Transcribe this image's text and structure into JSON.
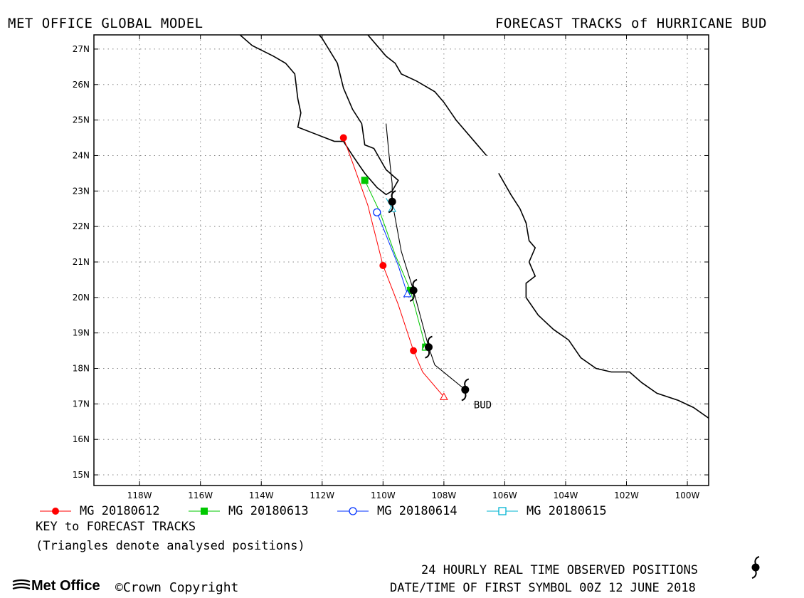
{
  "header": {
    "left": "MET OFFICE GLOBAL MODEL",
    "right": "FORECAST TRACKS of HURRICANE BUD"
  },
  "map": {
    "lon_range": [
      -119.5,
      -99.3
    ],
    "lat_range": [
      14.7,
      27.4
    ],
    "x_ticks": [
      {
        "lon": -118,
        "label": "118W"
      },
      {
        "lon": -116,
        "label": "116W"
      },
      {
        "lon": -114,
        "label": "114W"
      },
      {
        "lon": -112,
        "label": "112W"
      },
      {
        "lon": -110,
        "label": "110W"
      },
      {
        "lon": -108,
        "label": "108W"
      },
      {
        "lon": -106,
        "label": "106W"
      },
      {
        "lon": -104,
        "label": "104W"
      },
      {
        "lon": -102,
        "label": "102W"
      },
      {
        "lon": -100,
        "label": "100W"
      }
    ],
    "y_ticks": [
      {
        "lat": 15,
        "label": "15N"
      },
      {
        "lat": 16,
        "label": "16N"
      },
      {
        "lat": 17,
        "label": "17N"
      },
      {
        "lat": 18,
        "label": "18N"
      },
      {
        "lat": 19,
        "label": "19N"
      },
      {
        "lat": 20,
        "label": "20N"
      },
      {
        "lat": 21,
        "label": "21N"
      },
      {
        "lat": 22,
        "label": "22N"
      },
      {
        "lat": 23,
        "label": "23N"
      },
      {
        "lat": 24,
        "label": "24N"
      },
      {
        "lat": 25,
        "label": "25N"
      },
      {
        "lat": 26,
        "label": "26N"
      },
      {
        "lat": 27,
        "label": "27N"
      }
    ],
    "grid": true,
    "coastlines": [
      [
        [
          -114.7,
          27.4
        ],
        [
          -114.3,
          27.1
        ],
        [
          -113.6,
          26.8
        ],
        [
          -113.2,
          26.6
        ],
        [
          -112.9,
          26.3
        ],
        [
          -112.8,
          25.6
        ],
        [
          -112.7,
          25.2
        ],
        [
          -112.8,
          24.8
        ],
        [
          -112.2,
          24.6
        ],
        [
          -111.6,
          24.4
        ],
        [
          -111.3,
          24.4
        ],
        [
          -111.0,
          24.0
        ],
        [
          -110.6,
          23.5
        ],
        [
          -110.2,
          23.1
        ],
        [
          -109.9,
          22.9
        ],
        [
          -109.7,
          23.0
        ],
        [
          -109.5,
          23.3
        ],
        [
          -109.9,
          23.6
        ],
        [
          -110.3,
          24.2
        ],
        [
          -110.6,
          24.3
        ],
        [
          -110.7,
          24.9
        ],
        [
          -111.0,
          25.3
        ],
        [
          -111.3,
          25.9
        ],
        [
          -111.5,
          26.6
        ],
        [
          -112.0,
          27.3
        ],
        [
          -112.1,
          27.4
        ]
      ],
      [
        [
          -110.5,
          27.4
        ],
        [
          -110.2,
          27.1
        ],
        [
          -109.9,
          26.8
        ],
        [
          -109.6,
          26.6
        ],
        [
          -109.4,
          26.3
        ],
        [
          -108.9,
          26.1
        ],
        [
          -108.3,
          25.8
        ],
        [
          -108.0,
          25.5
        ],
        [
          -107.6,
          25.0
        ],
        [
          -107.1,
          24.5
        ],
        [
          -106.6,
          24.0
        ]
      ],
      [
        [
          -106.2,
          23.5
        ],
        [
          -105.8,
          22.9
        ],
        [
          -105.5,
          22.5
        ],
        [
          -105.3,
          22.1
        ],
        [
          -105.2,
          21.6
        ],
        [
          -105.0,
          21.4
        ],
        [
          -105.2,
          21.0
        ],
        [
          -105.0,
          20.6
        ],
        [
          -105.3,
          20.4
        ],
        [
          -105.3,
          20.0
        ],
        [
          -104.9,
          19.5
        ],
        [
          -104.4,
          19.1
        ],
        [
          -103.9,
          18.8
        ],
        [
          -103.5,
          18.3
        ],
        [
          -103.0,
          18.0
        ],
        [
          -102.5,
          17.9
        ],
        [
          -101.9,
          17.9
        ],
        [
          -101.5,
          17.6
        ],
        [
          -101.0,
          17.3
        ],
        [
          -100.3,
          17.1
        ],
        [
          -99.8,
          16.9
        ],
        [
          -99.3,
          16.6
        ]
      ]
    ]
  },
  "forecast_tracks": [
    {
      "name": "MG 20180612",
      "color": "#ff0000",
      "marker": "filled-circle",
      "points": [
        [
          -108.0,
          17.2
        ],
        [
          -108.7,
          17.9
        ],
        [
          -109.0,
          18.5
        ],
        [
          -109.5,
          19.8
        ],
        [
          -110.0,
          20.9
        ],
        [
          -110.5,
          22.6
        ],
        [
          -111.0,
          23.8
        ],
        [
          -111.3,
          24.5
        ]
      ],
      "marked_points": [
        [
          -109.0,
          18.5
        ],
        [
          -110.0,
          20.9
        ],
        [
          -111.3,
          24.5
        ]
      ],
      "analysed": [
        -108.0,
        17.2
      ]
    },
    {
      "name": "MG 20180613",
      "color": "#00c800",
      "marker": "filled-square",
      "points": [
        [
          -108.6,
          18.6
        ],
        [
          -109.1,
          20.2
        ],
        [
          -109.6,
          21.2
        ],
        [
          -110.1,
          22.4
        ],
        [
          -110.6,
          23.3
        ]
      ],
      "marked_points": [
        [
          -108.6,
          18.6
        ],
        [
          -109.1,
          20.2
        ],
        [
          -110.6,
          23.3
        ]
      ],
      "analysed": [
        -108.6,
        18.6
      ]
    },
    {
      "name": "MG 20180614",
      "color": "#0032ff",
      "marker": "open-circle",
      "points": [
        [
          -109.2,
          20.1
        ],
        [
          -109.5,
          20.9
        ],
        [
          -110.2,
          22.4
        ]
      ],
      "marked_points": [
        [
          -110.2,
          22.4
        ]
      ],
      "analysed": [
        -109.2,
        20.1
      ]
    },
    {
      "name": "MG 20180615",
      "color": "#00b4d2",
      "marker": "open-square",
      "points": [
        [
          -109.7,
          22.5
        ],
        [
          -109.9,
          22.8
        ]
      ],
      "marked_points": [],
      "analysed": [
        -109.7,
        22.5
      ]
    }
  ],
  "observed_track": {
    "storm_label": "BUD",
    "points": [
      [
        -109.9,
        24.9
      ],
      [
        -109.8,
        24.0
      ],
      [
        -109.7,
        23.2
      ],
      [
        -109.7,
        22.7
      ],
      [
        -109.4,
        21.3
      ],
      [
        -109.0,
        20.2
      ],
      [
        -108.5,
        18.6
      ],
      [
        -108.3,
        18.1
      ],
      [
        -107.3,
        17.4
      ]
    ],
    "symbols": [
      [
        -107.3,
        17.4
      ],
      [
        -108.5,
        18.6
      ],
      [
        -109.0,
        20.2
      ],
      [
        -109.7,
        22.7
      ]
    ]
  },
  "legend": [
    {
      "label": "MG 20180612",
      "color": "#ff0000",
      "marker": "filled-circle"
    },
    {
      "label": "MG 20180613",
      "color": "#00c800",
      "marker": "filled-square"
    },
    {
      "label": "MG 20180614",
      "color": "#0032ff",
      "marker": "open-circle"
    },
    {
      "label": "MG 20180615",
      "color": "#00b4d2",
      "marker": "open-square"
    }
  ],
  "key": {
    "title": "KEY to FORECAST TRACKS",
    "note": "(Triangles denote analysed positions)"
  },
  "footer": {
    "observed_label": "24 HOURLY REAL TIME OBSERVED POSITIONS",
    "first_symbol": "DATE/TIME OF FIRST SYMBOL 00Z 12 JUNE 2018",
    "logo": "Met Office",
    "copyright": "©Crown Copyright"
  }
}
